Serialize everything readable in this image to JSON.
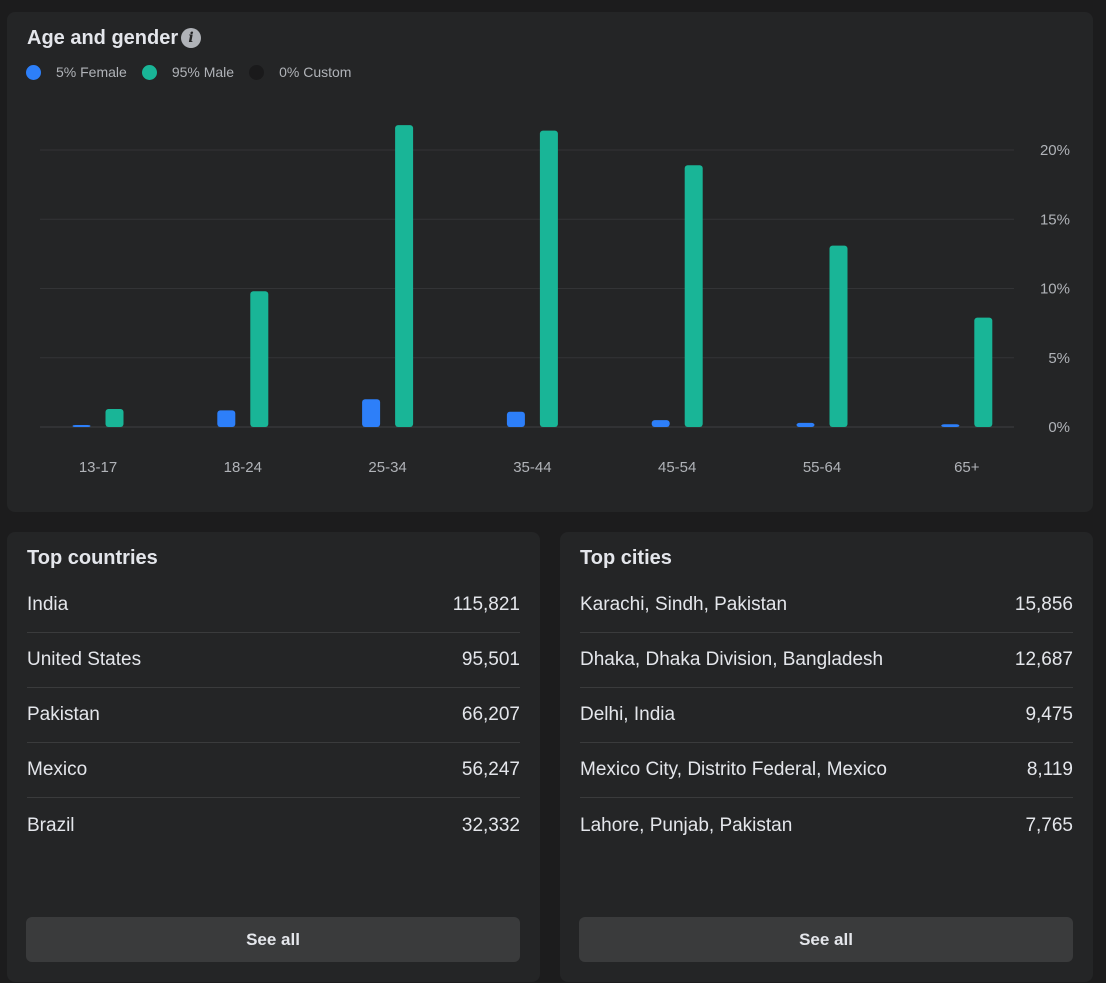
{
  "age_gender": {
    "title": "Age and gender",
    "legend": [
      {
        "label": "5% Female",
        "color": "#2d7ff9"
      },
      {
        "label": "95% Male",
        "color": "#19b597"
      },
      {
        "label": "0% Custom",
        "color": "#1a1a1b"
      }
    ]
  },
  "chart_data": {
    "type": "bar",
    "title": "Age and gender",
    "categories": [
      "13-17",
      "18-24",
      "25-34",
      "35-44",
      "45-54",
      "55-64",
      "65+"
    ],
    "series": [
      {
        "name": "5% Female",
        "color": "#2d7ff9",
        "values": [
          0.1,
          1.2,
          2.0,
          1.1,
          0.5,
          0.3,
          0.2
        ]
      },
      {
        "name": "95% Male",
        "color": "#19b597",
        "values": [
          1.3,
          9.8,
          21.8,
          21.4,
          18.9,
          13.1,
          7.9
        ]
      },
      {
        "name": "0% Custom",
        "color": "#1a1a1b",
        "values": [
          0,
          0,
          0,
          0,
          0,
          0,
          0
        ]
      }
    ],
    "yticks": [
      "0%",
      "5%",
      "10%",
      "15%",
      "20%"
    ],
    "ylim": [
      0,
      20
    ],
    "grid": true,
    "legend_position": "top-left"
  },
  "top_countries": {
    "title": "Top countries",
    "rows": [
      {
        "name": "India",
        "value": "115,821"
      },
      {
        "name": "United States",
        "value": "95,501"
      },
      {
        "name": "Pakistan",
        "value": "66,207"
      },
      {
        "name": "Mexico",
        "value": "56,247"
      },
      {
        "name": "Brazil",
        "value": "32,332"
      }
    ],
    "see_all": "See all"
  },
  "top_cities": {
    "title": "Top cities",
    "rows": [
      {
        "name": "Karachi, Sindh, Pakistan",
        "value": "15,856"
      },
      {
        "name": "Dhaka, Dhaka Division, Bangladesh",
        "value": "12,687"
      },
      {
        "name": "Delhi, India",
        "value": "9,475"
      },
      {
        "name": "Mexico City, Distrito Federal, Mexico",
        "value": "8,119"
      },
      {
        "name": "Lahore, Punjab, Pakistan",
        "value": "7,765"
      }
    ],
    "see_all": "See all"
  }
}
